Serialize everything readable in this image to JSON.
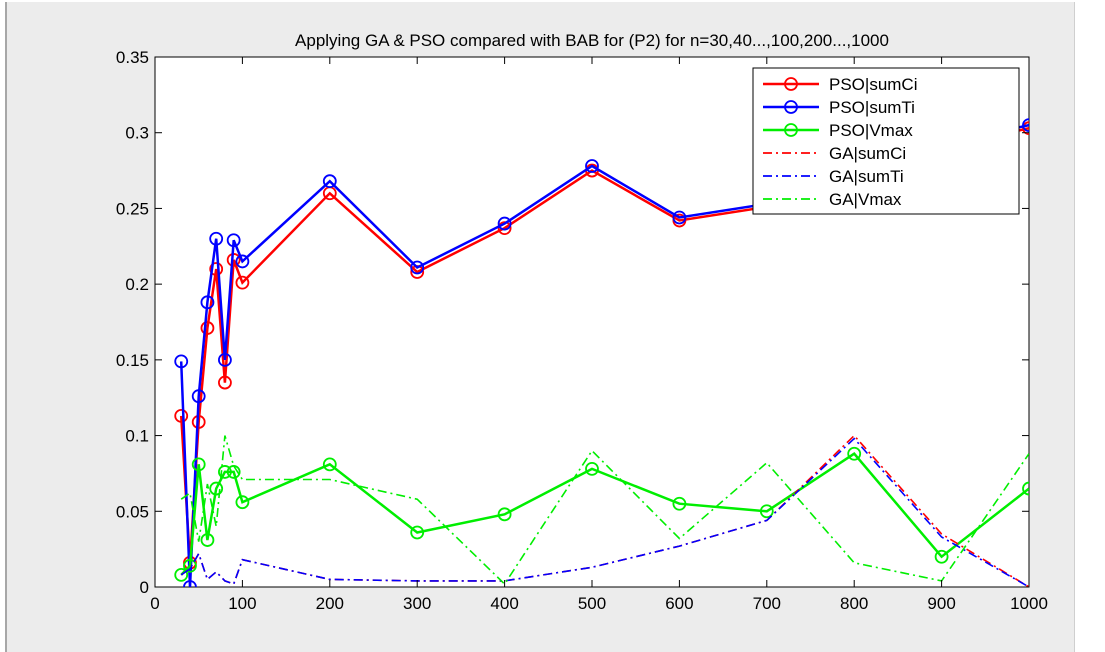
{
  "chart_data": {
    "type": "line",
    "title": "Applying GA & PSO compared with BAB for (P2) for n=30,40...,100,200...,1000",
    "xlabel": "",
    "ylabel": "",
    "xlim": [
      0,
      1000
    ],
    "ylim": [
      0,
      0.35
    ],
    "xticks": [
      "0",
      "100",
      "200",
      "300",
      "400",
      "500",
      "600",
      "700",
      "800",
      "900",
      "1000"
    ],
    "yticks": [
      "0",
      "0.05",
      "0.1",
      "0.15",
      "0.2",
      "0.25",
      "0.3",
      "0.35"
    ],
    "grid": false,
    "legend_position": "top-right",
    "x": [
      30,
      40,
      50,
      60,
      70,
      80,
      90,
      100,
      200,
      300,
      400,
      500,
      600,
      700,
      800,
      900,
      1000
    ],
    "series": [
      {
        "name": "PSO|sumCi",
        "color": "#ff0000",
        "style": "solid",
        "marker": "circle",
        "values": [
          0.113,
          0.016,
          0.109,
          0.171,
          0.21,
          0.135,
          0.216,
          0.201,
          0.26,
          0.208,
          0.237,
          0.275,
          0.242,
          0.251,
          0.252,
          0.29,
          0.303
        ]
      },
      {
        "name": "PSO|sumTi",
        "color": "#0000ff",
        "style": "solid",
        "marker": "circle",
        "values": [
          0.149,
          0.0,
          0.126,
          0.188,
          0.23,
          0.15,
          0.229,
          0.215,
          0.268,
          0.211,
          0.24,
          0.278,
          0.244,
          0.253,
          0.255,
          0.292,
          0.305
        ]
      },
      {
        "name": "PSO|Vmax",
        "color": "#00ee00",
        "style": "solid",
        "marker": "circle",
        "values": [
          0.008,
          0.014,
          0.081,
          0.031,
          0.065,
          0.076,
          0.076,
          0.056,
          0.081,
          0.036,
          0.048,
          0.078,
          0.055,
          0.05,
          0.088,
          0.02,
          0.065
        ]
      },
      {
        "name": "GA|sumCi",
        "color": "#ff0000",
        "style": "dashdot",
        "marker": "none",
        "values": [
          0.008,
          0.012,
          0.022,
          0.005,
          0.01,
          0.004,
          0.002,
          0.018,
          0.005,
          0.004,
          0.004,
          0.013,
          0.027,
          0.044,
          0.1,
          0.035,
          0.0
        ]
      },
      {
        "name": "GA|sumTi",
        "color": "#0000ff",
        "style": "dashdot",
        "marker": "none",
        "values": [
          0.008,
          0.012,
          0.022,
          0.005,
          0.01,
          0.004,
          0.002,
          0.018,
          0.005,
          0.004,
          0.004,
          0.013,
          0.027,
          0.044,
          0.098,
          0.033,
          0.0
        ]
      },
      {
        "name": "GA|Vmax",
        "color": "#00ee00",
        "style": "dashdot",
        "marker": "none",
        "values": [
          0.058,
          0.062,
          0.03,
          0.068,
          0.04,
          0.1,
          0.08,
          0.071,
          0.071,
          0.058,
          0.002,
          0.09,
          0.032,
          0.082,
          0.016,
          0.004,
          0.088
        ]
      }
    ]
  }
}
